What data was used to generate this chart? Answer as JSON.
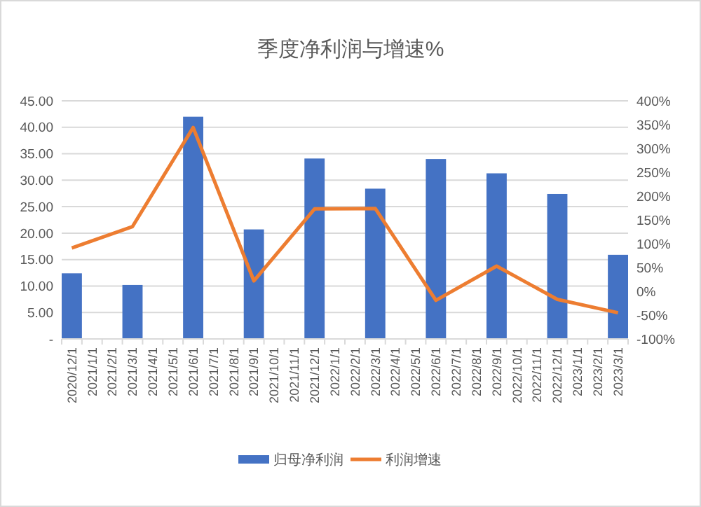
{
  "chart_data": {
    "type": "bar",
    "title": "季度净利润与增速%",
    "categories": [
      "2020/12/1",
      "2021/1/1",
      "2021/2/1",
      "2021/3/1",
      "2021/4/1",
      "2021/5/1",
      "2021/6/1",
      "2021/7/1",
      "2021/8/1",
      "2021/9/1",
      "2021/10/1",
      "2021/11/1",
      "2021/12/1",
      "2022/1/1",
      "2022/2/1",
      "2022/3/1",
      "2022/4/1",
      "2022/5/1",
      "2022/6/1",
      "2022/7/1",
      "2022/8/1",
      "2022/9/1",
      "2022/10/1",
      "2022/11/1",
      "2022/12/1",
      "2023/1/1",
      "2023/2/1",
      "2023/3/1"
    ],
    "series": [
      {
        "name": "归母净利润",
        "color": "#4472c4",
        "values": [
          12.4,
          null,
          null,
          10.2,
          null,
          null,
          42,
          null,
          null,
          20.7,
          null,
          null,
          34.1,
          null,
          null,
          28.4,
          null,
          null,
          34,
          null,
          null,
          31.3,
          null,
          null,
          27.4,
          null,
          null,
          15.9
        ]
      },
      {
        "name": "利润增速",
        "type": "line",
        "axis": "y2",
        "color": "#ed7d31",
        "values": [
          91,
          null,
          null,
          136,
          null,
          null,
          344,
          null,
          null,
          22,
          null,
          null,
          173,
          null,
          null,
          174,
          null,
          null,
          -19,
          null,
          null,
          53,
          null,
          null,
          -17,
          null,
          null,
          -45
        ]
      }
    ],
    "ylim": [
      0,
      45
    ],
    "yticks": [
      {
        "value": 0,
        "label": "-"
      },
      {
        "value": 5,
        "label": "5.00"
      },
      {
        "value": 10,
        "label": "10.00"
      },
      {
        "value": 15,
        "label": "15.00"
      },
      {
        "value": 20,
        "label": "20.00"
      },
      {
        "value": 25,
        "label": "25.00"
      },
      {
        "value": 30,
        "label": "30.00"
      },
      {
        "value": 35,
        "label": "35.00"
      },
      {
        "value": 40,
        "label": "40.00"
      },
      {
        "value": 45,
        "label": "45.00"
      }
    ],
    "y2lim": [
      -100,
      400
    ],
    "y2ticks": [
      {
        "value": -100,
        "label": "-100%"
      },
      {
        "value": -50,
        "label": "-50%"
      },
      {
        "value": 0,
        "label": "0%"
      },
      {
        "value": 50,
        "label": "50%"
      },
      {
        "value": 100,
        "label": "100%"
      },
      {
        "value": 150,
        "label": "150%"
      },
      {
        "value": 200,
        "label": "200%"
      },
      {
        "value": 250,
        "label": "250%"
      },
      {
        "value": 300,
        "label": "300%"
      },
      {
        "value": 350,
        "label": "350%"
      },
      {
        "value": 400,
        "label": "400%"
      }
    ],
    "grid": "y",
    "legend": "bottom",
    "line_style": "solid",
    "marker": "none"
  }
}
